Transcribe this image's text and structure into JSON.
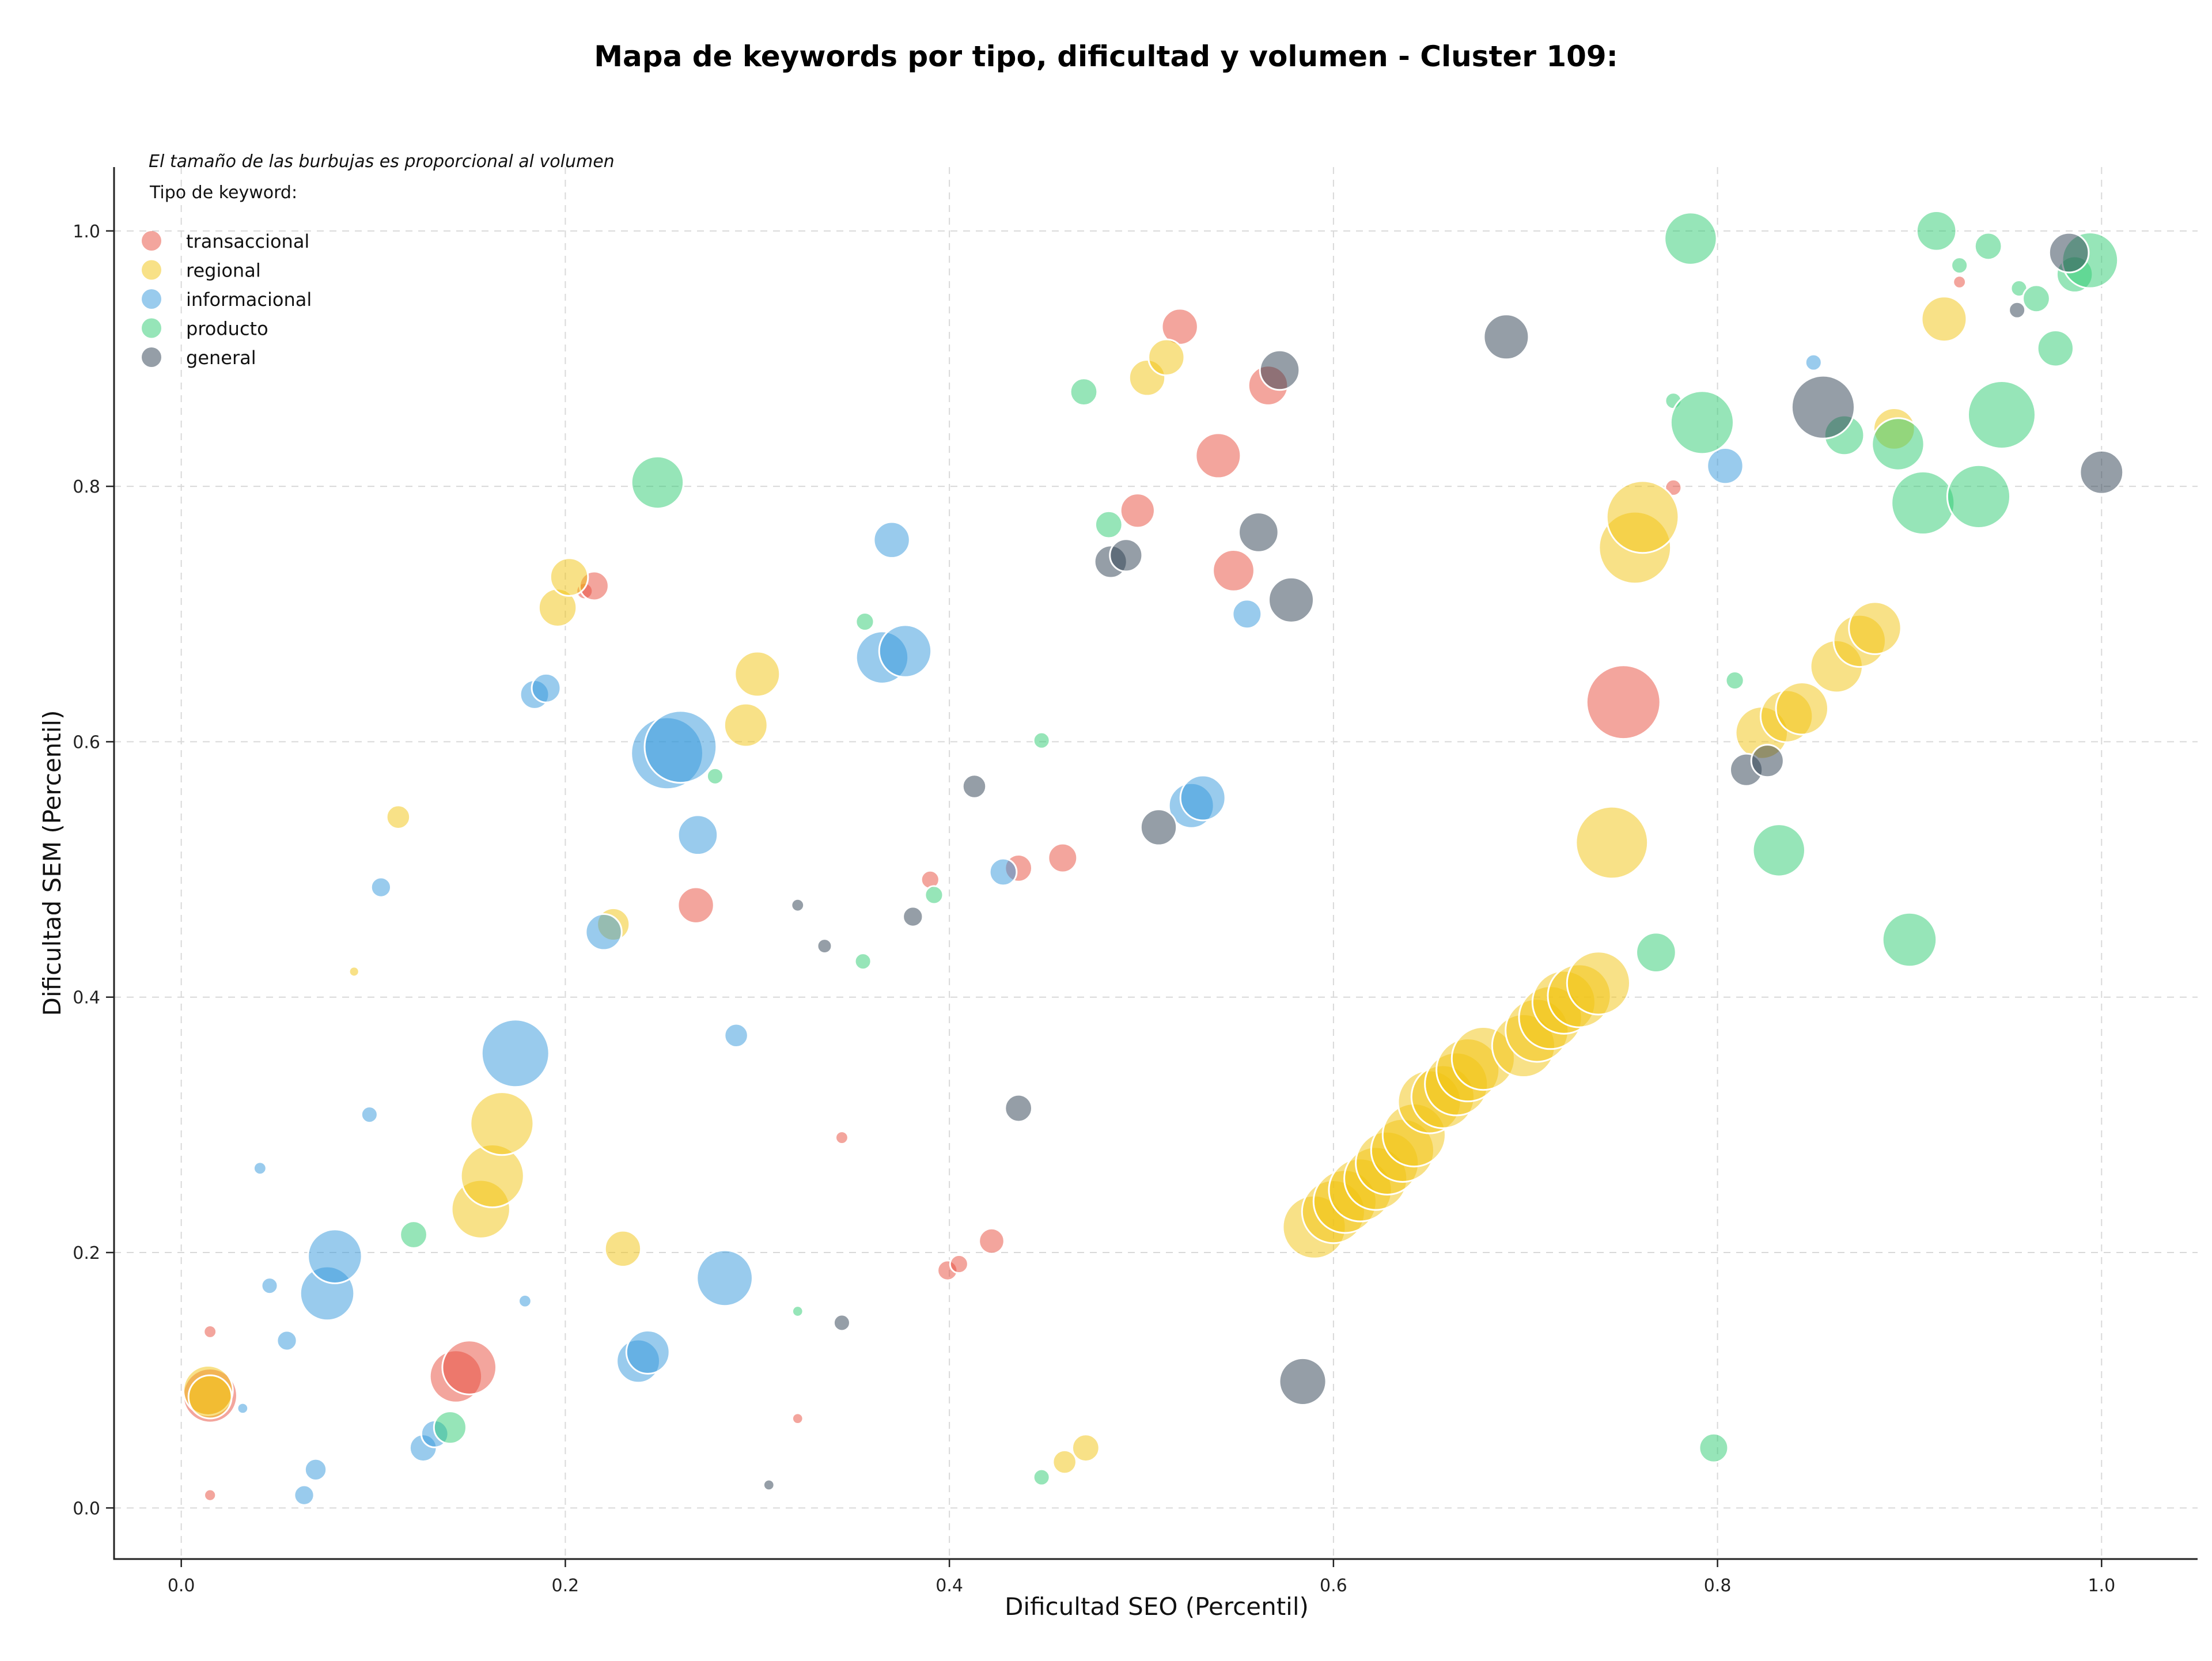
{
  "chart_data": {
    "type": "scatter",
    "title": "Mapa de keywords por tipo, dificultad y volumen - Cluster 109:",
    "xlabel": "Dificultad SEO (Percentil)",
    "ylabel": "Dificultad SEM (Percentil)",
    "note": "El tamaño de las burbujas es proporcional al volumen",
    "legend_title": "Tipo de keyword:",
    "legend_placement": "top-left",
    "xlim": [
      -0.035,
      1.05
    ],
    "ylim": [
      -0.04,
      1.05
    ],
    "x_ticks": [
      0.0,
      0.2,
      0.4,
      0.6,
      0.8,
      1.0
    ],
    "y_ticks": [
      0.0,
      0.2,
      0.4,
      0.6,
      0.8,
      1.0
    ],
    "x_tick_labels": [
      "0.0",
      "0.2",
      "0.4",
      "0.6",
      "0.8",
      "1.0"
    ],
    "y_tick_labels": [
      "0.0",
      "0.2",
      "0.4",
      "0.6",
      "0.8",
      "1.0"
    ],
    "grid": true,
    "series": [
      {
        "name": "transaccional",
        "color": "#e74c3c",
        "points": [
          {
            "x": 0.015,
            "y": 0.088,
            "v": 60
          },
          {
            "x": 0.015,
            "y": 0.138,
            "v": 14
          },
          {
            "x": 0.015,
            "y": 0.01,
            "v": 13
          },
          {
            "x": 0.143,
            "y": 0.103,
            "v": 58
          },
          {
            "x": 0.15,
            "y": 0.11,
            "v": 60
          },
          {
            "x": 0.21,
            "y": 0.718,
            "v": 18
          },
          {
            "x": 0.215,
            "y": 0.722,
            "v": 32
          },
          {
            "x": 0.268,
            "y": 0.472,
            "v": 40
          },
          {
            "x": 0.321,
            "y": 0.07,
            "v": 12
          },
          {
            "x": 0.344,
            "y": 0.29,
            "v": 14
          },
          {
            "x": 0.39,
            "y": 0.492,
            "v": 20
          },
          {
            "x": 0.399,
            "y": 0.186,
            "v": 22
          },
          {
            "x": 0.405,
            "y": 0.191,
            "v": 20
          },
          {
            "x": 0.422,
            "y": 0.209,
            "v": 28
          },
          {
            "x": 0.436,
            "y": 0.501,
            "v": 30
          },
          {
            "x": 0.459,
            "y": 0.509,
            "v": 32
          },
          {
            "x": 0.498,
            "y": 0.781,
            "v": 38
          },
          {
            "x": 0.52,
            "y": 0.925,
            "v": 40
          },
          {
            "x": 0.54,
            "y": 0.824,
            "v": 50
          },
          {
            "x": 0.548,
            "y": 0.734,
            "v": 46
          },
          {
            "x": 0.566,
            "y": 0.879,
            "v": 44
          },
          {
            "x": 0.751,
            "y": 0.631,
            "v": 82
          },
          {
            "x": 0.777,
            "y": 0.799,
            "v": 18
          },
          {
            "x": 0.926,
            "y": 0.96,
            "v": 14
          }
        ]
      },
      {
        "name": "regional",
        "color": "#f1c40f",
        "points": [
          {
            "x": 0.014,
            "y": 0.092,
            "v": 55
          },
          {
            "x": 0.015,
            "y": 0.087,
            "v": 48
          },
          {
            "x": 0.09,
            "y": 0.42,
            "v": 11
          },
          {
            "x": 0.113,
            "y": 0.541,
            "v": 26
          },
          {
            "x": 0.156,
            "y": 0.234,
            "v": 65
          },
          {
            "x": 0.162,
            "y": 0.26,
            "v": 70
          },
          {
            "x": 0.167,
            "y": 0.301,
            "v": 70
          },
          {
            "x": 0.196,
            "y": 0.705,
            "v": 42
          },
          {
            "x": 0.202,
            "y": 0.729,
            "v": 42
          },
          {
            "x": 0.225,
            "y": 0.457,
            "v": 36
          },
          {
            "x": 0.23,
            "y": 0.203,
            "v": 40
          },
          {
            "x": 0.294,
            "y": 0.613,
            "v": 48
          },
          {
            "x": 0.3,
            "y": 0.653,
            "v": 50
          },
          {
            "x": 0.46,
            "y": 0.036,
            "v": 26
          },
          {
            "x": 0.471,
            "y": 0.047,
            "v": 30
          },
          {
            "x": 0.503,
            "y": 0.885,
            "v": 40
          },
          {
            "x": 0.513,
            "y": 0.901,
            "v": 40
          },
          {
            "x": 0.59,
            "y": 0.22,
            "v": 70
          },
          {
            "x": 0.6,
            "y": 0.232,
            "v": 70
          },
          {
            "x": 0.606,
            "y": 0.24,
            "v": 70
          },
          {
            "x": 0.614,
            "y": 0.249,
            "v": 70
          },
          {
            "x": 0.622,
            "y": 0.258,
            "v": 70
          },
          {
            "x": 0.628,
            "y": 0.27,
            "v": 70
          },
          {
            "x": 0.636,
            "y": 0.28,
            "v": 70
          },
          {
            "x": 0.642,
            "y": 0.292,
            "v": 70
          },
          {
            "x": 0.65,
            "y": 0.318,
            "v": 70
          },
          {
            "x": 0.657,
            "y": 0.322,
            "v": 70
          },
          {
            "x": 0.664,
            "y": 0.332,
            "v": 70
          },
          {
            "x": 0.67,
            "y": 0.343,
            "v": 70
          },
          {
            "x": 0.678,
            "y": 0.352,
            "v": 70
          },
          {
            "x": 0.699,
            "y": 0.362,
            "v": 70
          },
          {
            "x": 0.706,
            "y": 0.374,
            "v": 70
          },
          {
            "x": 0.713,
            "y": 0.384,
            "v": 70
          },
          {
            "x": 0.72,
            "y": 0.396,
            "v": 70
          },
          {
            "x": 0.728,
            "y": 0.401,
            "v": 70
          },
          {
            "x": 0.738,
            "y": 0.411,
            "v": 70
          },
          {
            "x": 0.745,
            "y": 0.521,
            "v": 80
          },
          {
            "x": 0.757,
            "y": 0.752,
            "v": 80
          },
          {
            "x": 0.761,
            "y": 0.776,
            "v": 80
          },
          {
            "x": 0.823,
            "y": 0.607,
            "v": 58
          },
          {
            "x": 0.836,
            "y": 0.62,
            "v": 58
          },
          {
            "x": 0.844,
            "y": 0.626,
            "v": 58
          },
          {
            "x": 0.862,
            "y": 0.659,
            "v": 58
          },
          {
            "x": 0.874,
            "y": 0.679,
            "v": 58
          },
          {
            "x": 0.882,
            "y": 0.689,
            "v": 58
          },
          {
            "x": 0.892,
            "y": 0.845,
            "v": 46
          },
          {
            "x": 0.918,
            "y": 0.931,
            "v": 50
          }
        ]
      },
      {
        "name": "informacional",
        "color": "#3498db",
        "points": [
          {
            "x": 0.032,
            "y": 0.078,
            "v": 12
          },
          {
            "x": 0.041,
            "y": 0.266,
            "v": 14
          },
          {
            "x": 0.046,
            "y": 0.174,
            "v": 18
          },
          {
            "x": 0.055,
            "y": 0.131,
            "v": 22
          },
          {
            "x": 0.064,
            "y": 0.01,
            "v": 22
          },
          {
            "x": 0.07,
            "y": 0.03,
            "v": 24
          },
          {
            "x": 0.076,
            "y": 0.168,
            "v": 60
          },
          {
            "x": 0.08,
            "y": 0.197,
            "v": 60
          },
          {
            "x": 0.098,
            "y": 0.308,
            "v": 18
          },
          {
            "x": 0.104,
            "y": 0.486,
            "v": 22
          },
          {
            "x": 0.126,
            "y": 0.047,
            "v": 30
          },
          {
            "x": 0.132,
            "y": 0.058,
            "v": 30
          },
          {
            "x": 0.174,
            "y": 0.356,
            "v": 75
          },
          {
            "x": 0.179,
            "y": 0.162,
            "v": 14
          },
          {
            "x": 0.184,
            "y": 0.637,
            "v": 32
          },
          {
            "x": 0.19,
            "y": 0.642,
            "v": 32
          },
          {
            "x": 0.22,
            "y": 0.451,
            "v": 40
          },
          {
            "x": 0.238,
            "y": 0.115,
            "v": 48
          },
          {
            "x": 0.243,
            "y": 0.122,
            "v": 48
          },
          {
            "x": 0.253,
            "y": 0.591,
            "v": 80
          },
          {
            "x": 0.26,
            "y": 0.596,
            "v": 80
          },
          {
            "x": 0.269,
            "y": 0.527,
            "v": 44
          },
          {
            "x": 0.283,
            "y": 0.18,
            "v": 62
          },
          {
            "x": 0.289,
            "y": 0.37,
            "v": 26
          },
          {
            "x": 0.365,
            "y": 0.666,
            "v": 58
          },
          {
            "x": 0.37,
            "y": 0.758,
            "v": 40
          },
          {
            "x": 0.377,
            "y": 0.671,
            "v": 58
          },
          {
            "x": 0.428,
            "y": 0.498,
            "v": 30
          },
          {
            "x": 0.526,
            "y": 0.55,
            "v": 50
          },
          {
            "x": 0.532,
            "y": 0.556,
            "v": 50
          },
          {
            "x": 0.555,
            "y": 0.7,
            "v": 32
          },
          {
            "x": 0.804,
            "y": 0.816,
            "v": 40
          },
          {
            "x": 0.85,
            "y": 0.897,
            "v": 18
          }
        ]
      },
      {
        "name": "producto",
        "color": "#2ecc71",
        "points": [
          {
            "x": 0.121,
            "y": 0.214,
            "v": 30
          },
          {
            "x": 0.14,
            "y": 0.063,
            "v": 36
          },
          {
            "x": 0.248,
            "y": 0.803,
            "v": 58
          },
          {
            "x": 0.278,
            "y": 0.573,
            "v": 18
          },
          {
            "x": 0.321,
            "y": 0.154,
            "v": 12
          },
          {
            "x": 0.355,
            "y": 0.428,
            "v": 18
          },
          {
            "x": 0.356,
            "y": 0.694,
            "v": 20
          },
          {
            "x": 0.392,
            "y": 0.48,
            "v": 20
          },
          {
            "x": 0.448,
            "y": 0.024,
            "v": 18
          },
          {
            "x": 0.448,
            "y": 0.601,
            "v": 18
          },
          {
            "x": 0.47,
            "y": 0.874,
            "v": 30
          },
          {
            "x": 0.483,
            "y": 0.77,
            "v": 30
          },
          {
            "x": 0.768,
            "y": 0.435,
            "v": 44
          },
          {
            "x": 0.777,
            "y": 0.867,
            "v": 18
          },
          {
            "x": 0.786,
            "y": 0.994,
            "v": 58
          },
          {
            "x": 0.792,
            "y": 0.85,
            "v": 70
          },
          {
            "x": 0.798,
            "y": 0.047,
            "v": 32
          },
          {
            "x": 0.809,
            "y": 0.648,
            "v": 20
          },
          {
            "x": 0.832,
            "y": 0.515,
            "v": 58
          },
          {
            "x": 0.866,
            "y": 0.84,
            "v": 44
          },
          {
            "x": 0.894,
            "y": 0.833,
            "v": 58
          },
          {
            "x": 0.9,
            "y": 0.445,
            "v": 60
          },
          {
            "x": 0.907,
            "y": 0.787,
            "v": 70
          },
          {
            "x": 0.914,
            "y": 1.0,
            "v": 44
          },
          {
            "x": 0.926,
            "y": 0.973,
            "v": 18
          },
          {
            "x": 0.936,
            "y": 0.792,
            "v": 70
          },
          {
            "x": 0.941,
            "y": 0.988,
            "v": 30
          },
          {
            "x": 0.948,
            "y": 0.856,
            "v": 75
          },
          {
            "x": 0.957,
            "y": 0.955,
            "v": 18
          },
          {
            "x": 0.966,
            "y": 0.947,
            "v": 30
          },
          {
            "x": 0.976,
            "y": 0.908,
            "v": 40
          },
          {
            "x": 0.986,
            "y": 0.966,
            "v": 40
          },
          {
            "x": 0.994,
            "y": 0.977,
            "v": 62
          }
        ]
      },
      {
        "name": "general",
        "color": "#2c3e50",
        "points": [
          {
            "x": 0.306,
            "y": 0.018,
            "v": 12
          },
          {
            "x": 0.321,
            "y": 0.472,
            "v": 14
          },
          {
            "x": 0.335,
            "y": 0.44,
            "v": 16
          },
          {
            "x": 0.344,
            "y": 0.145,
            "v": 18
          },
          {
            "x": 0.381,
            "y": 0.463,
            "v": 22
          },
          {
            "x": 0.413,
            "y": 0.565,
            "v": 26
          },
          {
            "x": 0.436,
            "y": 0.313,
            "v": 30
          },
          {
            "x": 0.484,
            "y": 0.741,
            "v": 36
          },
          {
            "x": 0.492,
            "y": 0.746,
            "v": 36
          },
          {
            "x": 0.509,
            "y": 0.533,
            "v": 40
          },
          {
            "x": 0.561,
            "y": 0.764,
            "v": 44
          },
          {
            "x": 0.572,
            "y": 0.891,
            "v": 44
          },
          {
            "x": 0.578,
            "y": 0.711,
            "v": 50
          },
          {
            "x": 0.584,
            "y": 0.099,
            "v": 52
          },
          {
            "x": 0.69,
            "y": 0.917,
            "v": 50
          },
          {
            "x": 0.815,
            "y": 0.578,
            "v": 36
          },
          {
            "x": 0.826,
            "y": 0.585,
            "v": 36
          },
          {
            "x": 0.855,
            "y": 0.862,
            "v": 70
          },
          {
            "x": 0.956,
            "y": 0.938,
            "v": 18
          },
          {
            "x": 0.983,
            "y": 0.983,
            "v": 44
          },
          {
            "x": 1.0,
            "y": 0.811,
            "v": 48
          }
        ]
      }
    ]
  }
}
